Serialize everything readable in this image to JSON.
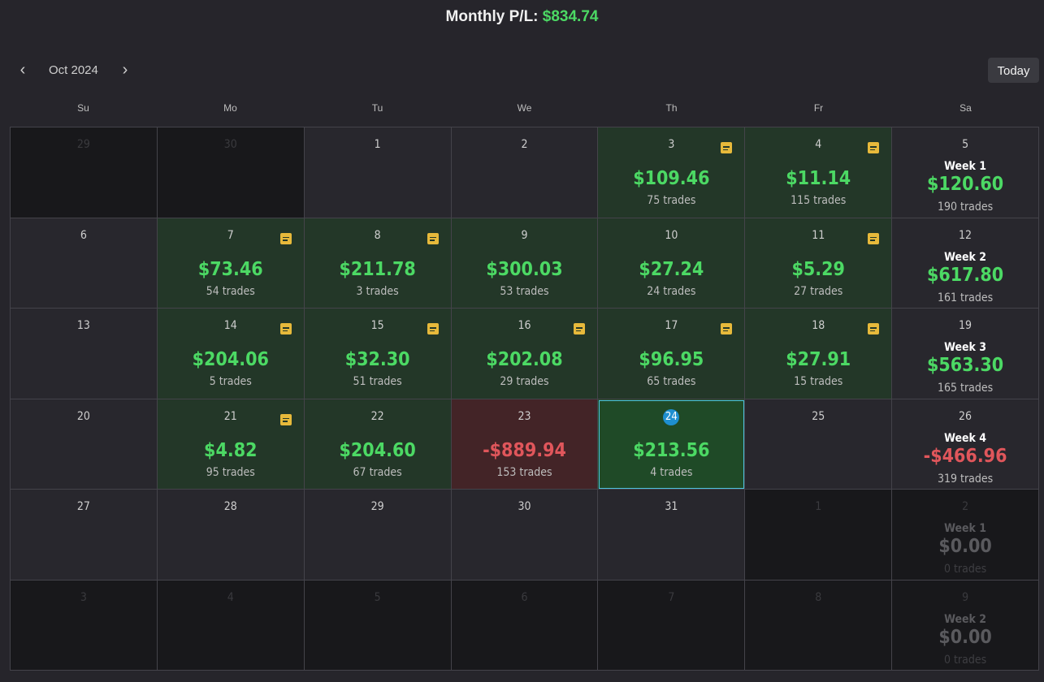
{
  "header": {
    "label": "Monthly P/L:",
    "value": "$834.74"
  },
  "nav": {
    "prev_icon": "chevron-left-icon",
    "next_icon": "chevron-right-icon",
    "prev_glyph": "‹",
    "next_glyph": "›",
    "month": "Oct 2024",
    "today_label": "Today"
  },
  "weekdays": [
    "Su",
    "Mo",
    "Tu",
    "We",
    "Th",
    "Fr",
    "Sa"
  ],
  "colors": {
    "positive": "#4cd964",
    "negative": "#e0565b",
    "note": "#e7b93b",
    "today_badge": "#1e8fd0"
  },
  "weeks": [
    {
      "days": [
        {
          "day": "29",
          "outside": true
        },
        {
          "day": "30",
          "outside": true
        },
        {
          "day": "1"
        },
        {
          "day": "2"
        },
        {
          "day": "3",
          "pl": "$109.46",
          "trades": "75 trades",
          "status": "win",
          "note": true
        },
        {
          "day": "4",
          "pl": "$11.14",
          "trades": "115 trades",
          "status": "win",
          "note": true
        }
      ],
      "summary": {
        "day": "5",
        "label": "Week 1",
        "pl": "$120.60",
        "trades": "190 trades"
      }
    },
    {
      "days": [
        {
          "day": "6"
        },
        {
          "day": "7",
          "pl": "$73.46",
          "trades": "54 trades",
          "status": "win",
          "note": true
        },
        {
          "day": "8",
          "pl": "$211.78",
          "trades": "3 trades",
          "status": "win",
          "note": true
        },
        {
          "day": "9",
          "pl": "$300.03",
          "trades": "53 trades",
          "status": "win"
        },
        {
          "day": "10",
          "pl": "$27.24",
          "trades": "24 trades",
          "status": "win"
        },
        {
          "day": "11",
          "pl": "$5.29",
          "trades": "27 trades",
          "status": "win",
          "note": true
        }
      ],
      "summary": {
        "day": "12",
        "label": "Week 2",
        "pl": "$617.80",
        "trades": "161 trades"
      }
    },
    {
      "days": [
        {
          "day": "13"
        },
        {
          "day": "14",
          "pl": "$204.06",
          "trades": "5 trades",
          "status": "win",
          "note": true
        },
        {
          "day": "15",
          "pl": "$32.30",
          "trades": "51 trades",
          "status": "win",
          "note": true
        },
        {
          "day": "16",
          "pl": "$202.08",
          "trades": "29 trades",
          "status": "win",
          "note": true
        },
        {
          "day": "17",
          "pl": "$96.95",
          "trades": "65 trades",
          "status": "win",
          "note": true
        },
        {
          "day": "18",
          "pl": "$27.91",
          "trades": "15 trades",
          "status": "win",
          "note": true
        }
      ],
      "summary": {
        "day": "19",
        "label": "Week 3",
        "pl": "$563.30",
        "trades": "165 trades"
      }
    },
    {
      "days": [
        {
          "day": "20"
        },
        {
          "day": "21",
          "pl": "$4.82",
          "trades": "95 trades",
          "status": "win",
          "note": true
        },
        {
          "day": "22",
          "pl": "$204.60",
          "trades": "67 trades",
          "status": "win"
        },
        {
          "day": "23",
          "pl": "-$889.94",
          "trades": "153 trades",
          "status": "loss"
        },
        {
          "day": "24",
          "pl": "$213.56",
          "trades": "4 trades",
          "status": "today"
        },
        {
          "day": "25"
        }
      ],
      "summary": {
        "day": "26",
        "label": "Week 4",
        "pl": "-$466.96",
        "trades": "319 trades",
        "negative": true
      }
    },
    {
      "days": [
        {
          "day": "27"
        },
        {
          "day": "28"
        },
        {
          "day": "29"
        },
        {
          "day": "30"
        },
        {
          "day": "31"
        },
        {
          "day": "1",
          "outside": true
        }
      ],
      "summary": {
        "day": "2",
        "label": "Week 1",
        "pl": "$0.00",
        "trades": "0 trades",
        "outside": true
      }
    },
    {
      "days": [
        {
          "day": "3",
          "outside": true
        },
        {
          "day": "4",
          "outside": true
        },
        {
          "day": "5",
          "outside": true
        },
        {
          "day": "6",
          "outside": true
        },
        {
          "day": "7",
          "outside": true
        },
        {
          "day": "8",
          "outside": true
        }
      ],
      "summary": {
        "day": "9",
        "label": "Week 2",
        "pl": "$0.00",
        "trades": "0 trades",
        "outside": true
      }
    }
  ]
}
